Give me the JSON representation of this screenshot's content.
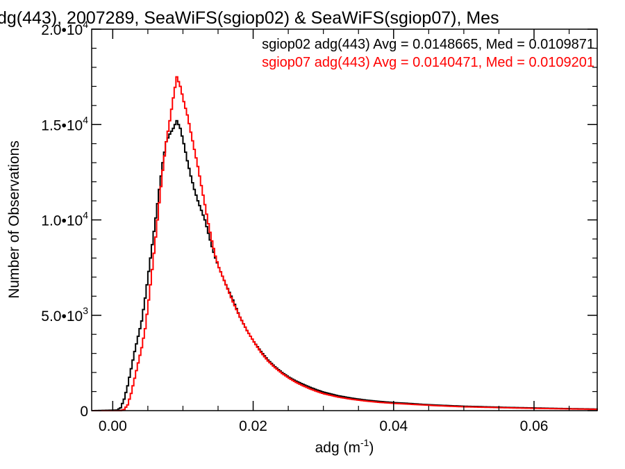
{
  "chart_data": {
    "type": "line",
    "title": "dg(443), 2007289, SeaWiFS(sgiop02) & SeaWiFS(sgiop07), Mes",
    "xlabel": "adg (m",
    "xlabel_sup": "-1",
    "xlabel_suffix": ")",
    "ylabel": "Number of Observations",
    "xlim": [
      -0.003,
      0.069
    ],
    "ylim": [
      0,
      20000
    ],
    "x_ticks": [
      {
        "value": 0.0,
        "label": "0.00"
      },
      {
        "value": 0.02,
        "label": "0.02"
      },
      {
        "value": 0.04,
        "label": "0.04"
      },
      {
        "value": 0.06,
        "label": "0.06"
      }
    ],
    "y_ticks": [
      {
        "value": 0,
        "label": "0",
        "sup": ""
      },
      {
        "value": 5000,
        "label": "5.0•10",
        "sup": "3"
      },
      {
        "value": 10000,
        "label": "1.0•10",
        "sup": "4"
      },
      {
        "value": 15000,
        "label": "1.5•10",
        "sup": "4"
      },
      {
        "value": 20000,
        "label": "2.0•10",
        "sup": "4"
      }
    ],
    "legend": [
      {
        "text": "sgiop02 adg(443) Avg = 0.0148665, Med = 0.0109871",
        "color": "#000000"
      },
      {
        "text": "sgiop07 adg(443) Avg = 0.0140471, Med = 0.0109201",
        "color": "#ff0000"
      }
    ],
    "series": [
      {
        "color": "#000000",
        "points": [
          [
            -0.003,
            0
          ],
          [
            0.0005,
            30
          ],
          [
            0.001,
            150
          ],
          [
            0.0015,
            600
          ],
          [
            0.002,
            1300
          ],
          [
            0.0025,
            2200
          ],
          [
            0.003,
            3100
          ],
          [
            0.0035,
            3900
          ],
          [
            0.004,
            4700
          ],
          [
            0.0045,
            5900
          ],
          [
            0.005,
            7300
          ],
          [
            0.0055,
            8700
          ],
          [
            0.006,
            10100
          ],
          [
            0.0065,
            11600
          ],
          [
            0.007,
            13000
          ],
          [
            0.0075,
            14100
          ],
          [
            0.008,
            14500
          ],
          [
            0.0085,
            14800
          ],
          [
            0.009,
            15200
          ],
          [
            0.0095,
            14800
          ],
          [
            0.01,
            14000
          ],
          [
            0.0105,
            13100
          ],
          [
            0.011,
            12300
          ],
          [
            0.0115,
            11600
          ],
          [
            0.012,
            11000
          ],
          [
            0.0125,
            10500
          ],
          [
            0.013,
            10000
          ],
          [
            0.0135,
            9300
          ],
          [
            0.014,
            8600
          ],
          [
            0.0145,
            8000
          ],
          [
            0.015,
            7500
          ],
          [
            0.016,
            6600
          ],
          [
            0.017,
            5800
          ],
          [
            0.018,
            4900
          ],
          [
            0.019,
            4200
          ],
          [
            0.02,
            3600
          ],
          [
            0.021,
            3100
          ],
          [
            0.022,
            2650
          ],
          [
            0.023,
            2300
          ],
          [
            0.024,
            2000
          ],
          [
            0.025,
            1750
          ],
          [
            0.026,
            1550
          ],
          [
            0.027,
            1380
          ],
          [
            0.028,
            1220
          ],
          [
            0.029,
            1080
          ],
          [
            0.03,
            960
          ],
          [
            0.032,
            780
          ],
          [
            0.034,
            650
          ],
          [
            0.036,
            550
          ],
          [
            0.038,
            480
          ],
          [
            0.04,
            420
          ],
          [
            0.042,
            380
          ],
          [
            0.044,
            330
          ],
          [
            0.046,
            290
          ],
          [
            0.048,
            260
          ],
          [
            0.05,
            230
          ],
          [
            0.053,
            200
          ],
          [
            0.056,
            170
          ],
          [
            0.06,
            140
          ],
          [
            0.064,
            110
          ],
          [
            0.069,
            80
          ]
        ]
      },
      {
        "color": "#ff0000",
        "points": [
          [
            -0.003,
            0
          ],
          [
            0.001,
            0
          ],
          [
            0.0015,
            60
          ],
          [
            0.002,
            300
          ],
          [
            0.0025,
            900
          ],
          [
            0.003,
            1700
          ],
          [
            0.0035,
            2500
          ],
          [
            0.004,
            3300
          ],
          [
            0.0045,
            4300
          ],
          [
            0.005,
            5800
          ],
          [
            0.0055,
            7400
          ],
          [
            0.006,
            9100
          ],
          [
            0.0065,
            10900
          ],
          [
            0.007,
            12600
          ],
          [
            0.0075,
            14100
          ],
          [
            0.008,
            15200
          ],
          [
            0.0085,
            16400
          ],
          [
            0.009,
            17500
          ],
          [
            0.0095,
            17000
          ],
          [
            0.01,
            16200
          ],
          [
            0.0105,
            15500
          ],
          [
            0.011,
            14600
          ],
          [
            0.0115,
            13700
          ],
          [
            0.012,
            12800
          ],
          [
            0.0125,
            11800
          ],
          [
            0.013,
            10800
          ],
          [
            0.0135,
            9800
          ],
          [
            0.014,
            8900
          ],
          [
            0.0145,
            8100
          ],
          [
            0.015,
            7500
          ],
          [
            0.016,
            6600
          ],
          [
            0.017,
            5700
          ],
          [
            0.018,
            4900
          ],
          [
            0.019,
            4200
          ],
          [
            0.02,
            3600
          ],
          [
            0.021,
            3050
          ],
          [
            0.022,
            2600
          ],
          [
            0.023,
            2250
          ],
          [
            0.024,
            1950
          ],
          [
            0.025,
            1700
          ],
          [
            0.026,
            1480
          ],
          [
            0.027,
            1300
          ],
          [
            0.028,
            1140
          ],
          [
            0.029,
            1000
          ],
          [
            0.03,
            880
          ],
          [
            0.032,
            710
          ],
          [
            0.034,
            590
          ],
          [
            0.036,
            500
          ],
          [
            0.038,
            430
          ],
          [
            0.04,
            380
          ],
          [
            0.042,
            340
          ],
          [
            0.044,
            300
          ],
          [
            0.046,
            260
          ],
          [
            0.048,
            230
          ],
          [
            0.05,
            200
          ],
          [
            0.053,
            175
          ],
          [
            0.056,
            150
          ],
          [
            0.06,
            120
          ],
          [
            0.064,
            95
          ],
          [
            0.069,
            70
          ]
        ]
      }
    ]
  }
}
